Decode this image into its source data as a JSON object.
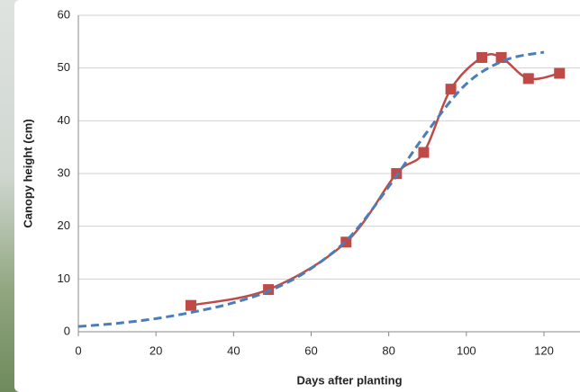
{
  "chart_data": {
    "type": "line",
    "x_label": "Days after planting",
    "y_label": "Canopy height (cm)",
    "xlim": [
      0,
      130
    ],
    "ylim": [
      0,
      60
    ],
    "xticks": [
      0,
      20,
      40,
      60,
      80,
      100,
      120
    ],
    "yticks": [
      0,
      10,
      20,
      30,
      40,
      50,
      60
    ],
    "grid": true,
    "series": [
      {
        "color": "#be4b48",
        "style": "solid",
        "markers": true,
        "x": [
          29,
          49,
          69,
          82,
          89,
          96,
          104,
          109,
          116,
          124
        ],
        "values": [
          5,
          8,
          17,
          30,
          34,
          46,
          52,
          52,
          48,
          49
        ]
      },
      {
        "color": "#4a7ebb",
        "style": "dashed",
        "markers": false,
        "x": [
          0,
          10,
          20,
          30,
          40,
          50,
          60,
          70,
          80,
          90,
          100,
          110,
          120
        ],
        "values": [
          1,
          1.6,
          2.5,
          3.8,
          5.5,
          8,
          12,
          18,
          27.5,
          38,
          47,
          51.5,
          53
        ]
      }
    ]
  }
}
